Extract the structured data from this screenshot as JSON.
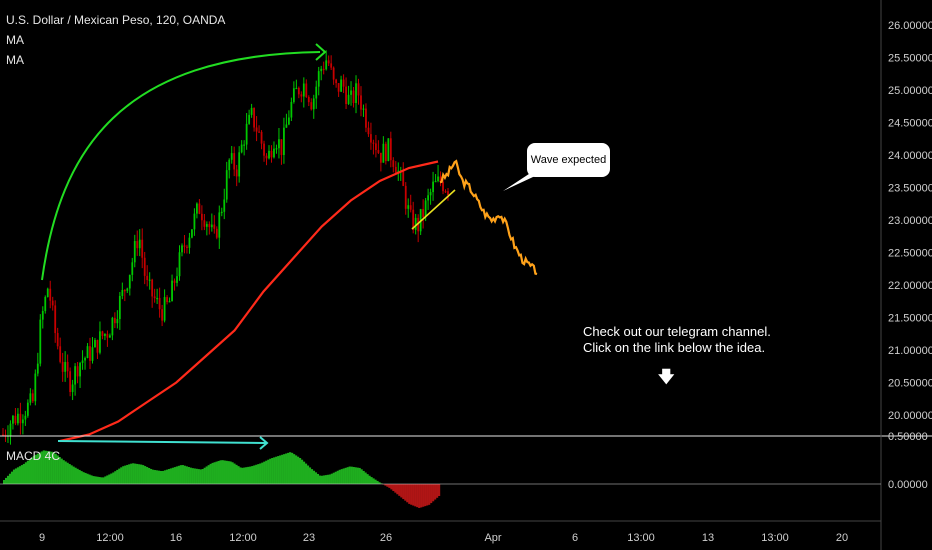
{
  "header": {
    "symbol_title": "U.S. Dollar / Mexican Peso, 120, OANDA",
    "indicators": [
      "MA",
      "MA"
    ]
  },
  "macd_panel": {
    "label": "MACD 4C"
  },
  "annotations": {
    "callout_text": "Wave expected",
    "promo_line1": "Check out our telegram channel.",
    "promo_line2": "Click on the link below the idea.",
    "arrow_icon": "down-arrow-icon"
  },
  "colors": {
    "background": "#000000",
    "up_candle": "#00c800",
    "down_candle": "#c80000",
    "ma": "#ff2a1a",
    "projection": "#ffa21a",
    "arc": "#22dd22",
    "trendline": "#e8e020",
    "macd_line": "#40e0d0",
    "macd_pos": "#1fae1f",
    "macd_neg": "#b01515"
  },
  "chart_data": {
    "type": "line",
    "title": "U.S. Dollar / Mexican Peso, 120, OANDA",
    "ylim": [
      19.6,
      26.2
    ],
    "y_ticks": [
      "26.00000",
      "25.50000",
      "25.00000",
      "24.50000",
      "24.00000",
      "23.50000",
      "23.00000",
      "22.50000",
      "22.00000",
      "21.50000",
      "21.00000",
      "20.50000",
      "20.00000"
    ],
    "x_ticks": [
      "9",
      "12:00",
      "16",
      "12:00",
      "23",
      "26",
      "Apr",
      "6",
      "13:00",
      "13",
      "13:00",
      "20"
    ],
    "macd_ticks": [
      "0.50000",
      "0.00000"
    ],
    "series": [
      {
        "values": [
          19.7,
          19.9,
          20.0,
          20.1,
          20.2,
          21.4,
          22.0,
          21.2,
          20.7,
          20.5,
          20.8,
          20.9,
          21.0,
          21.2,
          21.3,
          21.6,
          21.9,
          22.3,
          22.8,
          22.0,
          21.8,
          21.6,
          21.7,
          22.2,
          22.6,
          22.9,
          23.2,
          23.0,
          22.7,
          23.2,
          23.9,
          23.8,
          24.3,
          24.6,
          24.3,
          23.9,
          24.3,
          24.1,
          24.7,
          25.0,
          25.1,
          24.8,
          25.3,
          25.5,
          25.0,
          25.1,
          24.8,
          25.0,
          24.6,
          24.3,
          24.0,
          24.1,
          23.9,
          23.5,
          23.0,
          22.9,
          23.2,
          23.5,
          23.6,
          23.5
        ]
      },
      {
        "values": [
          19.6,
          19.7,
          19.9,
          20.2,
          20.5,
          20.9,
          21.3,
          21.9,
          22.4,
          22.9,
          23.3,
          23.6,
          23.8,
          23.9
        ]
      },
      {
        "values": [
          23.6,
          23.7,
          23.9,
          23.6,
          23.5,
          23.3,
          23.1,
          23.0,
          23.1,
          22.9,
          22.6,
          22.4,
          22.3,
          22.2
        ]
      },
      {
        "values": [
          0.05,
          0.18,
          0.25,
          0.35,
          0.42,
          0.4,
          0.3,
          0.22,
          0.15,
          0.1,
          0.08,
          0.14,
          0.22,
          0.26,
          0.24,
          0.18,
          0.16,
          0.2,
          0.24,
          0.2,
          0.18,
          0.26,
          0.3,
          0.28,
          0.2,
          0.22,
          0.26,
          0.32,
          0.36,
          0.4,
          0.32,
          0.2,
          0.1,
          0.12,
          0.18,
          0.22,
          0.2,
          0.1,
          0.02,
          -0.05,
          -0.15,
          -0.25,
          -0.3,
          -0.26,
          -0.15
        ]
      }
    ]
  }
}
